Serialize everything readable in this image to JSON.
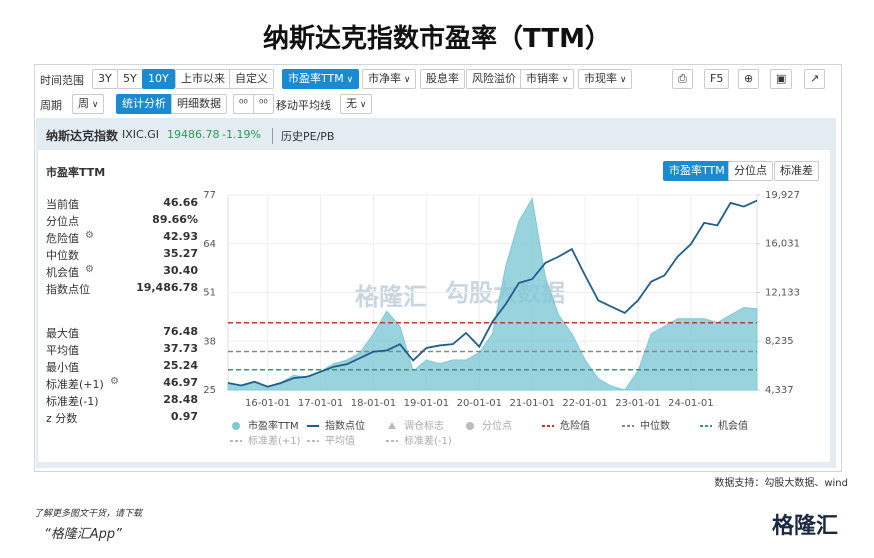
{
  "header": {
    "title": "纳斯达克指数市盈率（TTM）"
  },
  "toolbar": {
    "range_label": "时间范围",
    "ranges": [
      {
        "label": "3Y"
      },
      {
        "label": "5Y"
      },
      {
        "label": "10Y",
        "active": true
      },
      {
        "label": "上市以来"
      },
      {
        "label": "自定义"
      }
    ],
    "metrics": [
      {
        "label": "市盈率TTM",
        "dropdown": true,
        "active": true
      },
      {
        "label": "市净率",
        "dropdown": true
      },
      {
        "label": "股息率"
      },
      {
        "label": "风险溢价"
      },
      {
        "label": "市销率",
        "dropdown": true
      },
      {
        "label": "市现率",
        "dropdown": true
      }
    ],
    "refresh": "F5",
    "period_label": "周期",
    "period": "周",
    "views": [
      {
        "label": "统计分析",
        "active": true
      },
      {
        "label": "明细数据"
      }
    ],
    "ma_label": "移动平均线",
    "ma": "无"
  },
  "security": {
    "name": "纳斯达克指数",
    "code": "IXIC.GI",
    "price": "19486.78",
    "change": "-1.19%",
    "link": "历史PE/PB"
  },
  "panel": {
    "title": "市盈率TTM",
    "tabs": [
      {
        "label": "市盈率TTM",
        "active": true
      },
      {
        "label": "分位点"
      },
      {
        "label": "标准差"
      }
    ]
  },
  "stats": [
    [
      {
        "label": "当前值",
        "value": "46.66"
      },
      {
        "label": "分位点",
        "value": "89.66%"
      },
      {
        "label": "危险值",
        "value": "42.93",
        "settings": true
      },
      {
        "label": "中位数",
        "value": "35.27"
      },
      {
        "label": "机会值",
        "value": "30.40",
        "settings": true
      },
      {
        "label": "指数点位",
        "value": "19,486.78"
      }
    ],
    [
      {
        "label": "最大值",
        "value": "76.48"
      },
      {
        "label": "平均值",
        "value": "37.73"
      },
      {
        "label": "最小值",
        "value": "25.24"
      },
      {
        "label": "标准差(+1)",
        "value": "46.97",
        "settings": true
      },
      {
        "label": "标准差(-1)",
        "value": "28.48"
      },
      {
        "label": "z 分数",
        "value": "0.97"
      }
    ]
  ],
  "chart_data": {
    "type": "area-line",
    "categories": [
      null,
      null,
      null,
      "16-01-01",
      null,
      null,
      null,
      "17-01-01",
      null,
      null,
      null,
      "18-01-01",
      null,
      null,
      null,
      "19-01-01",
      null,
      null,
      null,
      "20-01-01",
      null,
      null,
      null,
      "21-01-01",
      null,
      null,
      null,
      "22-01-01",
      null,
      null,
      null,
      "23-01-01",
      null,
      null,
      null,
      "24-01-01",
      null,
      null,
      null,
      null,
      null
    ],
    "series": [
      {
        "name": "市盈率TTM",
        "color": "#7fc8d6",
        "values": [
          27,
          26,
          27,
          26,
          27,
          29,
          28,
          30,
          32,
          33,
          35,
          40,
          46,
          42,
          30,
          33,
          32,
          33,
          33,
          35,
          40,
          58,
          70,
          76,
          55,
          45,
          40,
          33,
          28,
          26,
          25,
          30,
          40,
          42,
          44,
          44,
          44,
          43,
          45,
          47,
          46.66
        ]
      },
      {
        "name": "指数点位",
        "color": "#1f5f8b",
        "axis": "y2",
        "values": [
          4900,
          4700,
          5000,
          4600,
          4900,
          5300,
          5400,
          5800,
          6200,
          6400,
          6900,
          7400,
          7500,
          8000,
          6700,
          7700,
          7900,
          8000,
          8900,
          7800,
          9800,
          11200,
          12900,
          13200,
          14500,
          15000,
          15600,
          13500,
          11500,
          11000,
          10500,
          11500,
          13000,
          13500,
          15000,
          16000,
          17700,
          17500,
          19300,
          19000,
          19486.78
        ]
      }
    ],
    "reference_lines": [
      {
        "name": "危险值",
        "value": 42.93,
        "color": "#c0392b"
      },
      {
        "name": "中位数",
        "value": 35.27,
        "color": "#888888"
      },
      {
        "name": "机会值",
        "value": 30.4,
        "color": "#2e9e6b"
      }
    ],
    "legend_extra": [
      {
        "name": "调仓标志",
        "color": "#bbbbbb"
      },
      {
        "name": "分位点",
        "color": "#bbbbbb"
      },
      {
        "name": "标准差(+1)",
        "color": "#bbbbbb"
      },
      {
        "name": "平均值",
        "color": "#bbbbbb"
      },
      {
        "name": "标准差(-1)",
        "color": "#bbbbbb"
      }
    ],
    "ylim": [
      25,
      77
    ],
    "yticks": [
      25,
      38,
      51,
      64,
      77
    ],
    "y2lim": [
      4337,
      19927
    ],
    "y2ticks": [
      {
        "value": 4337,
        "label": "4,337"
      },
      {
        "value": 8235,
        "label": "8,235"
      },
      {
        "value": 12133,
        "label": "12,133"
      },
      {
        "value": 16031,
        "label": "16,031"
      },
      {
        "value": 19927,
        "label": "19,927"
      }
    ],
    "grid": true,
    "watermarks": [
      "格隆汇",
      "勾股大数据"
    ]
  },
  "footer": {
    "source": "数据支持：勾股大数据、wind",
    "promo": "了解更多图文干货，请下载",
    "app": "“格隆汇App”",
    "brand": "格隆汇"
  }
}
